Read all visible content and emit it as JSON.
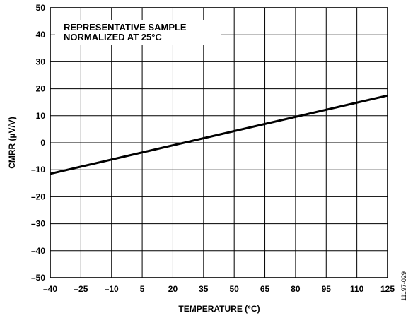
{
  "chart_data": {
    "type": "line",
    "title": "",
    "xlabel": "TEMPERATURE (°C)",
    "ylabel": "CMRR (µV/V)",
    "xlim": [
      -40,
      125
    ],
    "ylim": [
      -50,
      50
    ],
    "x_ticks": [
      -40,
      -25,
      -10,
      5,
      20,
      35,
      50,
      65,
      80,
      95,
      110,
      125
    ],
    "y_ticks": [
      -50,
      -40,
      -30,
      -20,
      -10,
      0,
      10,
      20,
      30,
      40,
      50
    ],
    "x_tick_labels": [
      "–40",
      "–25",
      "–10",
      "5",
      "20",
      "35",
      "50",
      "65",
      "80",
      "95",
      "110",
      "125"
    ],
    "y_tick_labels": [
      "–50",
      "–40",
      "–30",
      "–20",
      "–10",
      "0",
      "10",
      "20",
      "30",
      "40",
      "50"
    ],
    "grid": true,
    "annotation_lines": [
      "REPRESENTATIVE SAMPLE",
      "NORMALIZED AT 25°C"
    ],
    "figure_id": "11197-029",
    "line_color": "#000000",
    "series": [
      {
        "x": [
          -40,
          125
        ],
        "y": [
          -11.5,
          17.5
        ]
      }
    ]
  }
}
